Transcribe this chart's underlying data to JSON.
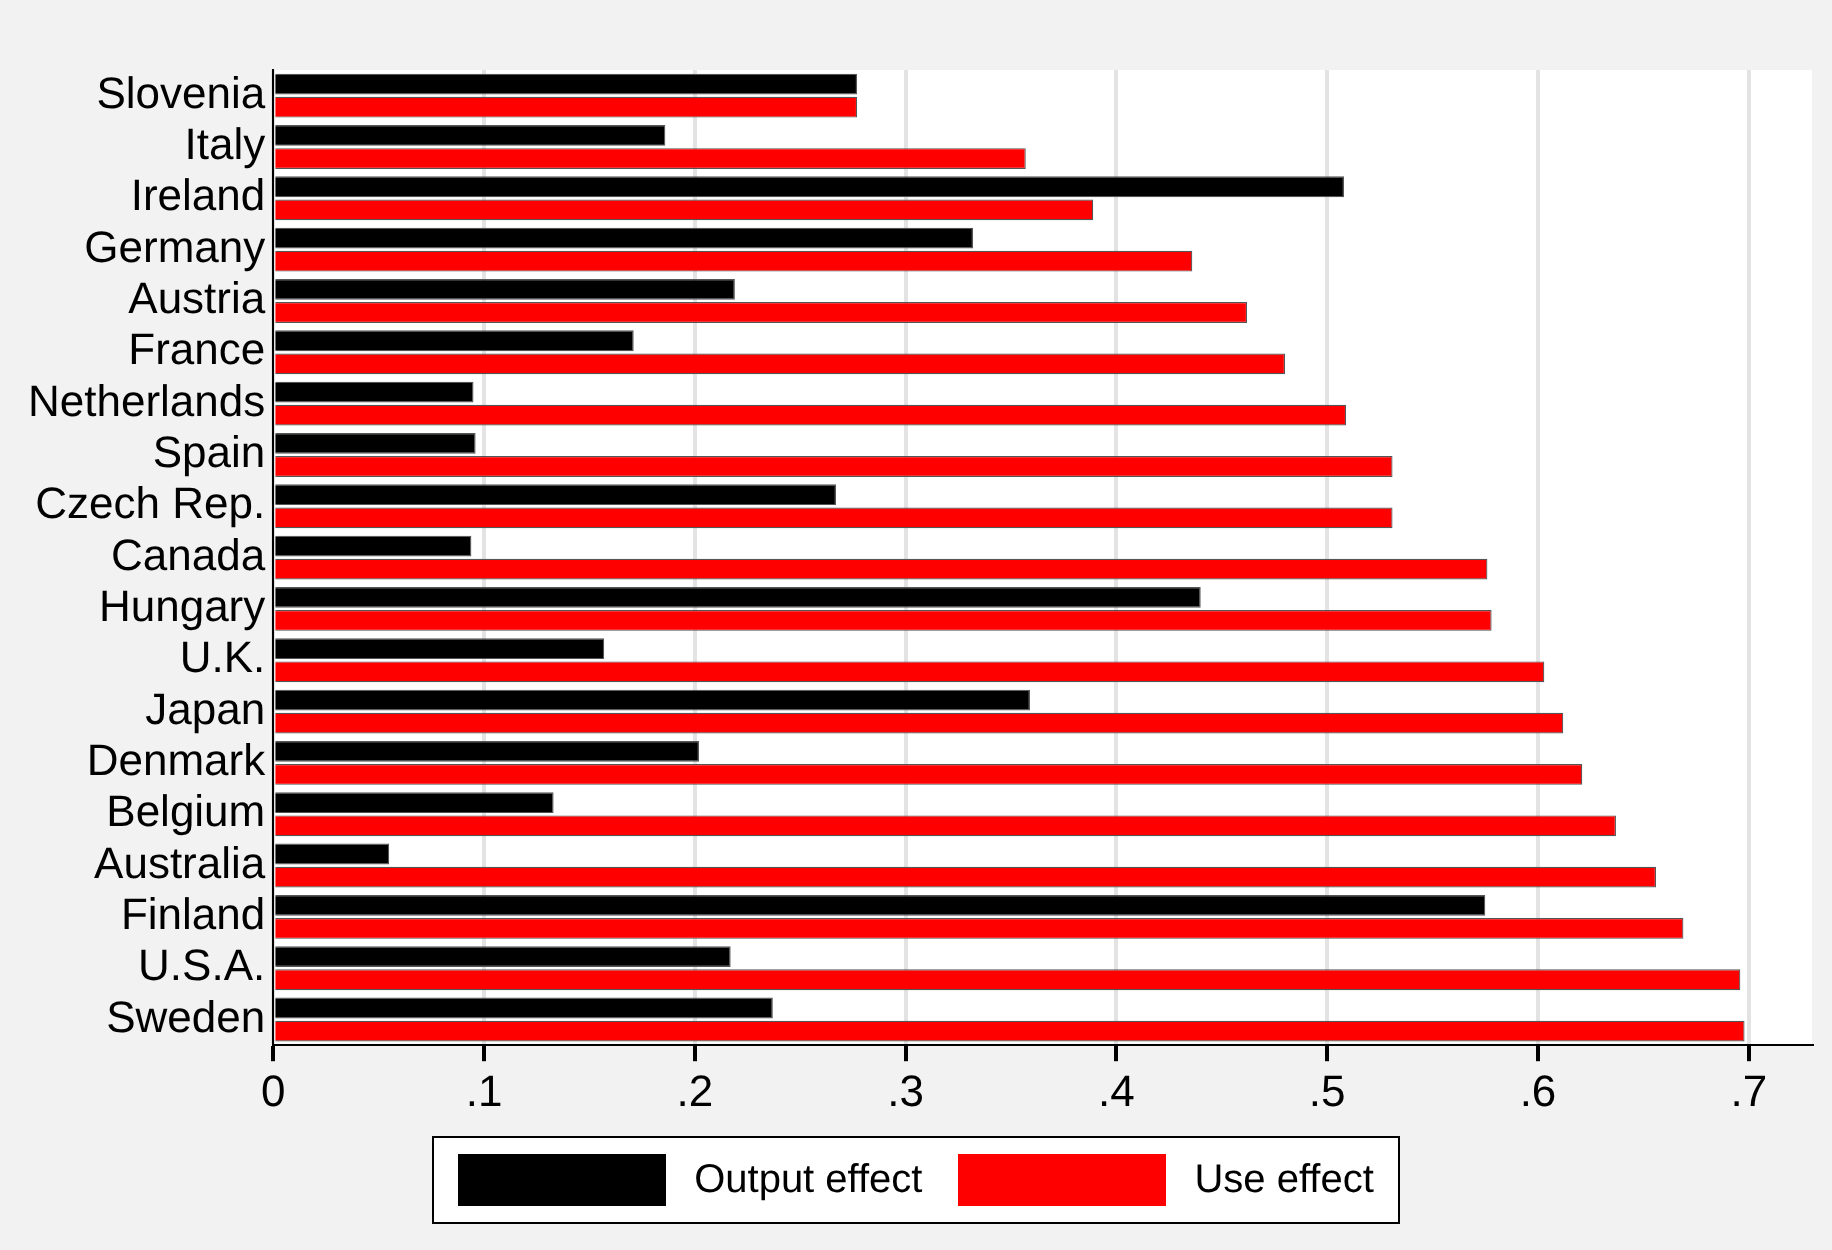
{
  "chart_data": {
    "type": "bar",
    "orientation": "horizontal",
    "categories": [
      "Slovenia",
      "Italy",
      "Ireland",
      "Germany",
      "Austria",
      "France",
      "Netherlands",
      "Spain",
      "Czech Rep.",
      "Canada",
      "Hungary",
      "U.K.",
      "Japan",
      "Denmark",
      "Belgium",
      "Australia",
      "Finland",
      "U.S.A.",
      "Sweden"
    ],
    "series": [
      {
        "name": "Output effect",
        "color": "#000000",
        "values": [
          0.277,
          0.186,
          0.508,
          0.332,
          0.219,
          0.171,
          0.095,
          0.096,
          0.267,
          0.094,
          0.44,
          0.157,
          0.359,
          0.202,
          0.133,
          0.055,
          0.575,
          0.217,
          0.237
        ]
      },
      {
        "name": "Use effect",
        "color": "#ff0000",
        "values": [
          0.277,
          0.357,
          0.389,
          0.436,
          0.462,
          0.48,
          0.509,
          0.531,
          0.531,
          0.576,
          0.578,
          0.603,
          0.612,
          0.621,
          0.637,
          0.656,
          0.669,
          0.696,
          0.698
        ]
      }
    ],
    "xlim": [
      0,
      0.73
    ],
    "xticks": [
      0,
      {
        "value": 0.1,
        "label": ".1"
      },
      {
        "value": 0.2,
        "label": ".2"
      },
      {
        "value": 0.3,
        "label": ".3"
      },
      {
        "value": 0.4,
        "label": ".4"
      },
      {
        "value": 0.5,
        "label": ".5"
      },
      {
        "value": 0.6,
        "label": ".6"
      },
      {
        "value": 0.7,
        "label": ".7"
      }
    ],
    "grid": "x",
    "legend": "bottom"
  }
}
